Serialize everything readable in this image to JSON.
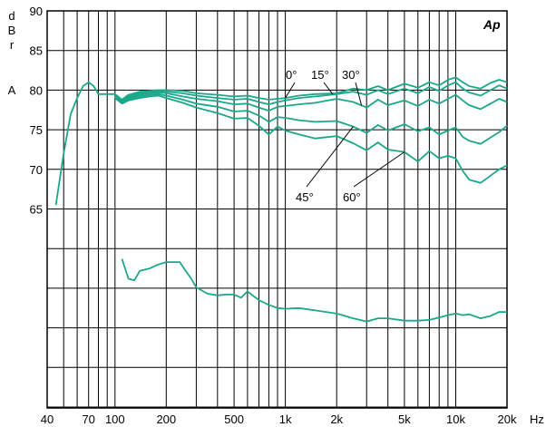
{
  "chart_data": {
    "type": "line",
    "y_unit_label": [
      "d",
      "B",
      "r",
      "A"
    ],
    "x_unit_label": "Hz",
    "logo": "Ap",
    "x_scale": "log",
    "xlim": [
      40,
      20000
    ],
    "ylim": [
      50,
      90
    ],
    "grid": true,
    "x_ticks": [
      {
        "value": 40,
        "label": "40"
      },
      {
        "value": 70,
        "label": "70"
      },
      {
        "value": 100,
        "label": "100"
      },
      {
        "value": 200,
        "label": "200"
      },
      {
        "value": 500,
        "label": "500"
      },
      {
        "value": 1000,
        "label": "1k"
      },
      {
        "value": 2000,
        "label": "2k"
      },
      {
        "value": 5000,
        "label": "5k"
      },
      {
        "value": 10000,
        "label": "10k"
      },
      {
        "value": 20000,
        "label": "20k"
      }
    ],
    "x_minor_grid": [
      40,
      50,
      60,
      70,
      80,
      90,
      100,
      200,
      300,
      400,
      500,
      600,
      700,
      800,
      900,
      1000,
      2000,
      3000,
      4000,
      5000,
      6000,
      7000,
      8000,
      9000,
      10000,
      20000
    ],
    "y_ticks": [
      {
        "value": 90,
        "label": "90"
      },
      {
        "value": 85,
        "label": "85"
      },
      {
        "value": 80,
        "label": "80"
      },
      {
        "value": 75,
        "label": "75"
      },
      {
        "value": 70,
        "label": "70"
      },
      {
        "value": 65,
        "label": "65"
      }
    ],
    "y_grid": [
      90,
      85,
      80,
      75,
      70,
      65,
      60,
      55,
      50,
      45,
      40
    ],
    "line_color": "#1aa88a",
    "series": [
      {
        "name": "0°",
        "points": [
          [
            45,
            65.5
          ],
          [
            50,
            72
          ],
          [
            55,
            77
          ],
          [
            60,
            79
          ],
          [
            65,
            80.5
          ],
          [
            70,
            81
          ],
          [
            75,
            80.5
          ],
          [
            80,
            79.5
          ],
          [
            90,
            79.5
          ],
          [
            100,
            79.5
          ],
          [
            110,
            78.8
          ],
          [
            120,
            79.4
          ],
          [
            140,
            79.8
          ],
          [
            160,
            79.9
          ],
          [
            180,
            80.0
          ],
          [
            200,
            80.0
          ],
          [
            250,
            79.9
          ],
          [
            300,
            79.6
          ],
          [
            400,
            79.4
          ],
          [
            500,
            79.2
          ],
          [
            600,
            79.3
          ],
          [
            700,
            79.0
          ],
          [
            800,
            78.8
          ],
          [
            900,
            78.9
          ],
          [
            1000,
            79.0
          ],
          [
            1200,
            79.3
          ],
          [
            1500,
            79.5
          ],
          [
            2000,
            79.6
          ],
          [
            2500,
            80.2
          ],
          [
            3000,
            80.0
          ],
          [
            3500,
            80.5
          ],
          [
            4000,
            80.0
          ],
          [
            5000,
            80.8
          ],
          [
            6000,
            80.3
          ],
          [
            7000,
            81.0
          ],
          [
            8000,
            80.6
          ],
          [
            9000,
            81.3
          ],
          [
            10000,
            81.6
          ],
          [
            11000,
            81.0
          ],
          [
            12000,
            80.5
          ],
          [
            14000,
            80.2
          ],
          [
            16000,
            80.9
          ],
          [
            18000,
            81.3
          ],
          [
            20000,
            81.0
          ]
        ]
      },
      {
        "name": "15°",
        "points": [
          [
            100,
            79.3
          ],
          [
            110,
            78.6
          ],
          [
            120,
            79.2
          ],
          [
            140,
            79.6
          ],
          [
            160,
            79.7
          ],
          [
            180,
            79.9
          ],
          [
            200,
            79.8
          ],
          [
            250,
            79.6
          ],
          [
            300,
            79.3
          ],
          [
            400,
            79.0
          ],
          [
            500,
            78.8
          ],
          [
            600,
            78.9
          ],
          [
            700,
            78.5
          ],
          [
            800,
            78.2
          ],
          [
            900,
            78.5
          ],
          [
            1000,
            78.7
          ],
          [
            1200,
            79.0
          ],
          [
            1500,
            79.2
          ],
          [
            2000,
            79.5
          ],
          [
            2500,
            79.8
          ],
          [
            3000,
            79.4
          ],
          [
            3500,
            80.0
          ],
          [
            4000,
            79.5
          ],
          [
            5000,
            80.2
          ],
          [
            6000,
            79.6
          ],
          [
            7000,
            80.4
          ],
          [
            8000,
            79.9
          ],
          [
            9000,
            80.6
          ],
          [
            10000,
            81.0
          ],
          [
            11000,
            80.2
          ],
          [
            12000,
            79.7
          ],
          [
            14000,
            79.3
          ],
          [
            16000,
            80.0
          ],
          [
            18000,
            80.6
          ],
          [
            20000,
            80.2
          ]
        ]
      },
      {
        "name": "30°",
        "points": [
          [
            100,
            79.2
          ],
          [
            110,
            78.5
          ],
          [
            120,
            79.0
          ],
          [
            140,
            79.4
          ],
          [
            160,
            79.6
          ],
          [
            180,
            79.7
          ],
          [
            200,
            79.6
          ],
          [
            250,
            79.2
          ],
          [
            300,
            78.9
          ],
          [
            400,
            78.6
          ],
          [
            500,
            78.2
          ],
          [
            600,
            78.3
          ],
          [
            700,
            77.8
          ],
          [
            800,
            77.4
          ],
          [
            900,
            77.9
          ],
          [
            1000,
            78.0
          ],
          [
            1200,
            78.2
          ],
          [
            1500,
            78.4
          ],
          [
            2000,
            78.9
          ],
          [
            2500,
            78.5
          ],
          [
            3000,
            77.8
          ],
          [
            3500,
            78.8
          ],
          [
            4000,
            78.1
          ],
          [
            5000,
            78.7
          ],
          [
            6000,
            78.0
          ],
          [
            7000,
            78.8
          ],
          [
            8000,
            78.3
          ],
          [
            9000,
            78.9
          ],
          [
            10000,
            79.4
          ],
          [
            11000,
            78.7
          ],
          [
            12000,
            78.1
          ],
          [
            14000,
            77.6
          ],
          [
            16000,
            78.3
          ],
          [
            18000,
            78.9
          ],
          [
            20000,
            78.5
          ]
        ]
      },
      {
        "name": "45°",
        "points": [
          [
            100,
            79.1
          ],
          [
            110,
            78.4
          ],
          [
            120,
            78.9
          ],
          [
            140,
            79.2
          ],
          [
            160,
            79.4
          ],
          [
            180,
            79.5
          ],
          [
            200,
            79.3
          ],
          [
            250,
            78.8
          ],
          [
            300,
            78.3
          ],
          [
            400,
            77.9
          ],
          [
            500,
            77.3
          ],
          [
            600,
            77.4
          ],
          [
            700,
            76.8
          ],
          [
            800,
            76.0
          ],
          [
            900,
            76.6
          ],
          [
            1000,
            76.5
          ],
          [
            1200,
            76.2
          ],
          [
            1500,
            76.0
          ],
          [
            2000,
            76.1
          ],
          [
            2500,
            75.4
          ],
          [
            3000,
            74.6
          ],
          [
            3500,
            75.6
          ],
          [
            4000,
            74.9
          ],
          [
            5000,
            75.7
          ],
          [
            6000,
            74.8
          ],
          [
            7000,
            75.3
          ],
          [
            8000,
            74.4
          ],
          [
            9000,
            74.9
          ],
          [
            10000,
            75.3
          ],
          [
            11000,
            74.1
          ],
          [
            12000,
            73.6
          ],
          [
            14000,
            73.2
          ],
          [
            16000,
            74.0
          ],
          [
            18000,
            74.7
          ],
          [
            20000,
            75.5
          ]
        ]
      },
      {
        "name": "60°",
        "points": [
          [
            100,
            79.0
          ],
          [
            110,
            78.3
          ],
          [
            120,
            78.7
          ],
          [
            140,
            79.0
          ],
          [
            160,
            79.2
          ],
          [
            180,
            79.3
          ],
          [
            200,
            79.0
          ],
          [
            250,
            78.4
          ],
          [
            300,
            77.8
          ],
          [
            400,
            77.1
          ],
          [
            500,
            76.4
          ],
          [
            600,
            76.5
          ],
          [
            700,
            75.5
          ],
          [
            800,
            74.4
          ],
          [
            900,
            75.4
          ],
          [
            1000,
            74.9
          ],
          [
            1200,
            74.4
          ],
          [
            1500,
            73.9
          ],
          [
            2000,
            74.2
          ],
          [
            2500,
            73.3
          ],
          [
            3000,
            72.4
          ],
          [
            3500,
            73.4
          ],
          [
            4000,
            72.5
          ],
          [
            5000,
            72.2
          ],
          [
            6000,
            71.0
          ],
          [
            7000,
            72.3
          ],
          [
            8000,
            71.4
          ],
          [
            9000,
            71.7
          ],
          [
            10000,
            71.4
          ],
          [
            11000,
            69.8
          ],
          [
            12000,
            68.7
          ],
          [
            14000,
            68.3
          ],
          [
            16000,
            69.2
          ],
          [
            18000,
            70.0
          ],
          [
            20000,
            70.5
          ]
        ]
      },
      {
        "points": [
          [
            110,
            58.7
          ],
          [
            120,
            56.2
          ],
          [
            130,
            56.0
          ],
          [
            140,
            57.2
          ],
          [
            160,
            57.5
          ],
          [
            180,
            58.0
          ],
          [
            200,
            58.3
          ],
          [
            240,
            58.3
          ],
          [
            260,
            57.2
          ],
          [
            280,
            56.2
          ],
          [
            300,
            55.1
          ],
          [
            350,
            54.3
          ],
          [
            400,
            54.1
          ],
          [
            450,
            54.2
          ],
          [
            500,
            54.2
          ],
          [
            550,
            53.8
          ],
          [
            600,
            54.6
          ],
          [
            650,
            54.0
          ],
          [
            700,
            53.5
          ],
          [
            800,
            52.9
          ],
          [
            900,
            52.5
          ],
          [
            1000,
            52.4
          ],
          [
            1200,
            52.5
          ],
          [
            1500,
            52.2
          ],
          [
            2000,
            51.8
          ],
          [
            2500,
            51.2
          ],
          [
            3000,
            50.8
          ],
          [
            3500,
            51.2
          ],
          [
            4000,
            51.2
          ],
          [
            5000,
            50.9
          ],
          [
            6000,
            50.9
          ],
          [
            7000,
            51.0
          ],
          [
            8000,
            51.3
          ],
          [
            9000,
            51.6
          ],
          [
            10000,
            51.8
          ],
          [
            11000,
            51.6
          ],
          [
            12000,
            51.7
          ],
          [
            14000,
            51.2
          ],
          [
            16000,
            51.5
          ],
          [
            18000,
            52.0
          ],
          [
            20000,
            52.0
          ]
        ]
      }
    ],
    "annotations": [
      {
        "text": "0°",
        "pointer_to_series": "0°",
        "at_x": 1000
      },
      {
        "text": "15°",
        "pointer_to_series": "15°",
        "at_x": 1900
      },
      {
        "text": "30°",
        "pointer_to_series": "30°",
        "at_x": 2800
      },
      {
        "text": "45°",
        "pointer_to_series": "45°",
        "at_x": 2500
      },
      {
        "text": "60°",
        "pointer_to_series": "60°",
        "at_x": 5000
      }
    ]
  }
}
